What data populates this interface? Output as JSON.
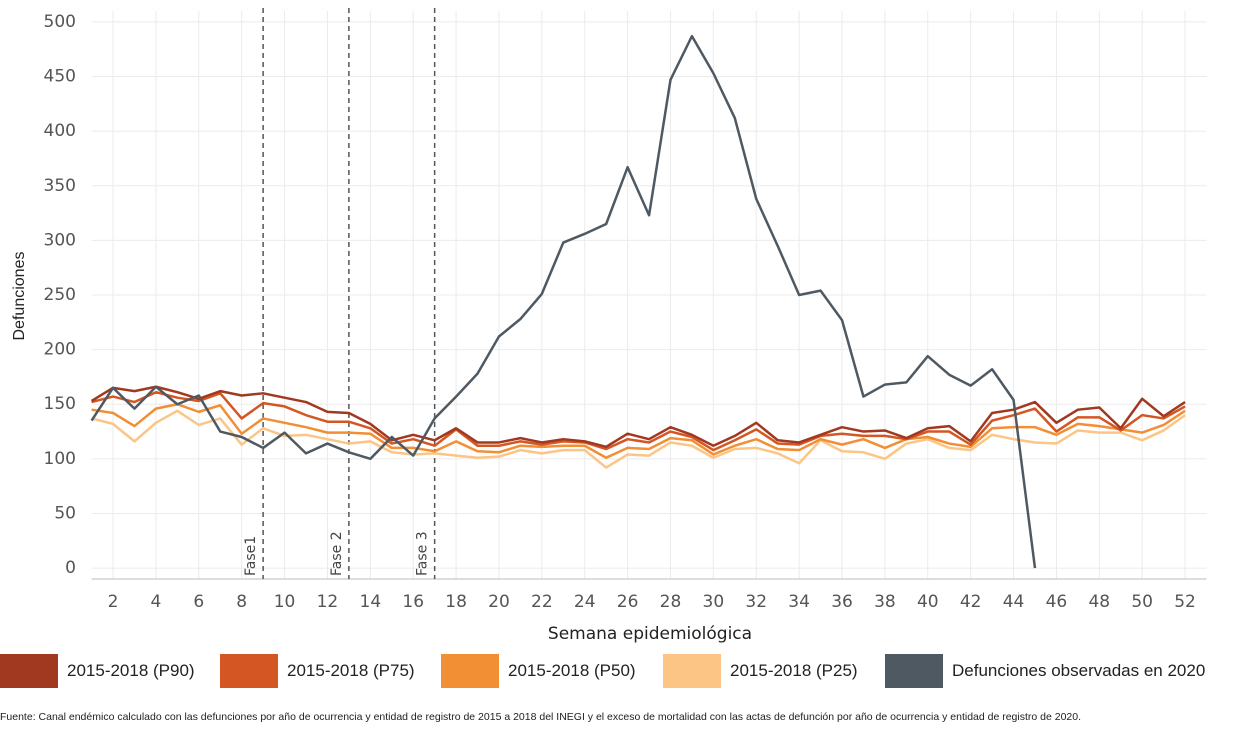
{
  "chart_data": {
    "type": "line",
    "ylabel": "Defunciones",
    "xlabel": "Semana epidemiológica",
    "x": [
      1,
      2,
      3,
      4,
      5,
      6,
      7,
      8,
      9,
      10,
      11,
      12,
      13,
      14,
      15,
      16,
      17,
      18,
      19,
      20,
      21,
      22,
      23,
      24,
      25,
      26,
      27,
      28,
      29,
      30,
      31,
      32,
      33,
      34,
      35,
      36,
      37,
      38,
      39,
      40,
      41,
      42,
      43,
      44,
      45,
      46,
      47,
      48,
      49,
      50,
      51,
      52
    ],
    "xlim": [
      1,
      53
    ],
    "xticks": [
      2,
      4,
      6,
      8,
      10,
      12,
      14,
      16,
      18,
      20,
      22,
      24,
      26,
      28,
      30,
      32,
      34,
      36,
      38,
      40,
      42,
      44,
      46,
      48,
      50,
      52
    ],
    "ylim": [
      -10,
      510
    ],
    "yticks": [
      0,
      50,
      100,
      150,
      200,
      250,
      300,
      350,
      400,
      450,
      500
    ],
    "grid": true,
    "annotations": [
      {
        "x": 9,
        "label": "Fase1"
      },
      {
        "x": 13,
        "label": "Fase 2"
      },
      {
        "x": 17,
        "label": "Fase 3"
      }
    ],
    "series": [
      {
        "name": "2015-2018 (P90)",
        "color": "#a0391f",
        "values": [
          153,
          165,
          162,
          166,
          161,
          155,
          162,
          158,
          160,
          156,
          152,
          143,
          142,
          132,
          117,
          122,
          117,
          128,
          115,
          115,
          119,
          115,
          118,
          116,
          111,
          123,
          118,
          129,
          122,
          112,
          121,
          133,
          117,
          115,
          122,
          129,
          125,
          126,
          119,
          128,
          130,
          116,
          142,
          145,
          152,
          133,
          145,
          147,
          128,
          155,
          139,
          152
        ]
      },
      {
        "name": "2015-2018 (P75)",
        "color": "#d45723",
        "values": [
          152,
          157,
          152,
          161,
          156,
          153,
          160,
          137,
          151,
          148,
          140,
          134,
          134,
          128,
          114,
          118,
          112,
          127,
          112,
          112,
          116,
          113,
          116,
          115,
          109,
          118,
          115,
          125,
          120,
          108,
          117,
          127,
          114,
          113,
          121,
          123,
          121,
          121,
          118,
          125,
          125,
          113,
          135,
          140,
          146,
          125,
          138,
          138,
          126,
          140,
          137,
          148
        ]
      },
      {
        "name": "2015-2018 (P50)",
        "color": "#f28e33",
        "values": [
          145,
          142,
          130,
          146,
          150,
          143,
          149,
          123,
          137,
          133,
          129,
          124,
          124,
          123,
          110,
          110,
          107,
          116,
          107,
          106,
          112,
          111,
          112,
          112,
          101,
          110,
          109,
          119,
          117,
          104,
          112,
          118,
          109,
          108,
          118,
          113,
          118,
          110,
          118,
          120,
          114,
          111,
          128,
          129,
          129,
          122,
          132,
          130,
          127,
          124,
          131,
          144
        ]
      },
      {
        "name": "2015-2018 (P25)",
        "color": "#fcc585",
        "values": [
          137,
          132,
          116,
          133,
          144,
          131,
          137,
          113,
          128,
          121,
          122,
          118,
          114,
          116,
          106,
          104,
          105,
          103,
          101,
          102,
          108,
          105,
          108,
          108,
          92,
          104,
          103,
          115,
          112,
          101,
          109,
          110,
          105,
          96,
          117,
          107,
          106,
          100,
          114,
          118,
          110,
          108,
          122,
          118,
          115,
          114,
          126,
          124,
          124,
          117,
          126,
          140
        ]
      },
      {
        "name": "Defunciones observadas en 2020",
        "color": "#4f5962",
        "values": [
          135,
          165,
          146,
          166,
          150,
          158,
          125,
          120,
          110,
          124,
          105,
          114,
          106,
          100,
          120,
          103,
          137,
          157,
          178,
          212,
          228,
          251,
          298,
          306,
          315,
          367,
          323,
          447,
          487,
          453,
          412,
          338,
          295,
          250,
          254,
          227,
          157,
          168,
          170,
          194,
          177,
          167,
          182,
          154,
          0,
          null,
          null,
          null,
          null,
          null,
          null,
          null
        ]
      }
    ],
    "source": "Fuente: Canal endémico calculado con las defunciones por año de ocurrencia y entidad de registro de 2015 a 2018 del INEGI y el exceso de mortalidad con las actas de defunción por año de ocurrencia y entidad de registro de 2020."
  }
}
